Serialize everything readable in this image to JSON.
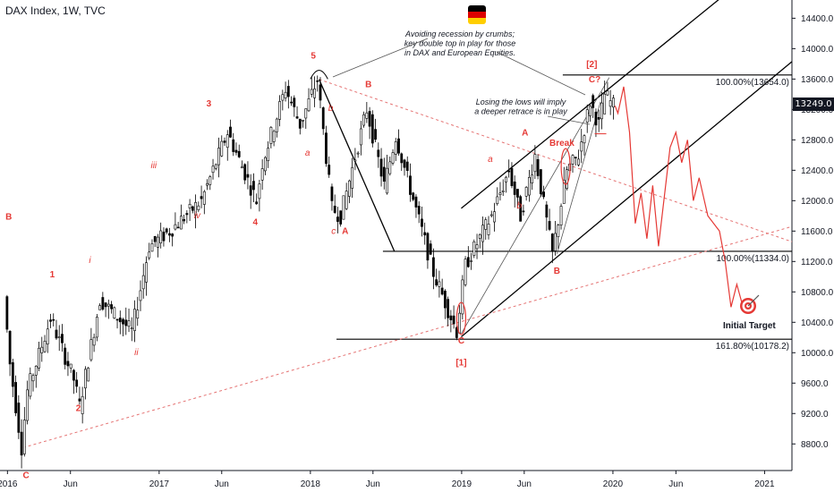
{
  "header": {
    "title": "DAX Index, 1W, TVC"
  },
  "price_badge": "13249.0",
  "colors": {
    "wave": "#e53935",
    "line": "#000000",
    "bull": "#26a69a",
    "bear": "#000000",
    "trend": "#e57373"
  },
  "annotations": {
    "callout": [
      "Avoiding recession by crumbs;",
      "key double top in play for those",
      "in DAX and European Equities."
    ],
    "retrace_note": [
      "Losing the lows will imply",
      "a deeper retrace is in play"
    ],
    "break_label": "Break",
    "target_label": "Initial Target"
  },
  "levels": [
    {
      "price": 13654.0,
      "label": "100.00%(13654.0)"
    },
    {
      "price": 11334.0,
      "label": "100.00%(11334.0)"
    },
    {
      "price": 10178.2,
      "label": "161.80%(10178.2)"
    }
  ],
  "wave_labels": [
    {
      "text": "B",
      "date": "2016-01-04",
      "price": 11750,
      "italic": false
    },
    {
      "text": "C",
      "date": "2016-02-15",
      "price": 8350,
      "italic": false
    },
    {
      "text": "1",
      "date": "2016-04-18",
      "price": 10990,
      "italic": false
    },
    {
      "text": "2",
      "date": "2016-06-20",
      "price": 9230,
      "italic": false
    },
    {
      "text": "i",
      "date": "2016-07-18",
      "price": 11180,
      "italic": true
    },
    {
      "text": "ii",
      "date": "2016-11-07",
      "price": 9970,
      "italic": true
    },
    {
      "text": "iii",
      "date": "2016-12-19",
      "price": 12430,
      "italic": true
    },
    {
      "text": "iv",
      "date": "2017-04-03",
      "price": 11770,
      "italic": true
    },
    {
      "text": "3",
      "date": "2017-05-01",
      "price": 13240,
      "italic": false
    },
    {
      "text": "4",
      "date": "2017-08-21",
      "price": 11680,
      "italic": false
    },
    {
      "text": "5",
      "date": "2018-01-08",
      "price": 13870,
      "italic": false
    },
    {
      "text": "a",
      "date": "2017-12-25",
      "price": 12590,
      "italic": true
    },
    {
      "text": "b",
      "date": "2018-02-19",
      "price": 13180,
      "italic": true
    },
    {
      "text": "B",
      "date": "2018-05-21",
      "price": 13490,
      "italic": false
    },
    {
      "text": "c",
      "date": "2018-02-26",
      "price": 11560,
      "italic": true
    },
    {
      "text": "A",
      "date": "2018-03-26",
      "price": 11560,
      "italic": false
    },
    {
      "text": "C",
      "date": "2018-12-31",
      "price": 10120,
      "italic": false
    },
    {
      "text": "[1]",
      "date": "2018-12-31",
      "price": 9830,
      "italic": false
    },
    {
      "text": "a",
      "date": "2019-03-11",
      "price": 12510,
      "italic": true
    },
    {
      "text": "b",
      "date": "2019-05-20",
      "price": 11900,
      "italic": true
    },
    {
      "text": "A",
      "date": "2019-06-03",
      "price": 12860,
      "italic": false
    },
    {
      "text": "B",
      "date": "2019-08-19",
      "price": 11040,
      "italic": false
    },
    {
      "text": "C?",
      "date": "2019-11-18",
      "price": 13560,
      "italic": false
    },
    {
      "text": "[2]",
      "date": "2019-11-11",
      "price": 13760,
      "italic": false
    }
  ],
  "chart_data": {
    "type": "candlestick",
    "title": "DAX Index, 1W, TVC",
    "x_ticks": [
      "2016",
      "Jun",
      "2017",
      "Jun",
      "2018",
      "Jun",
      "2019",
      "Jun",
      "2020",
      "Jun",
      "2021"
    ],
    "x_tick_dates": [
      "2016-01-01",
      "2016-06-01",
      "2017-01-01",
      "2017-06-01",
      "2018-01-01",
      "2018-06-01",
      "2019-01-01",
      "2019-06-01",
      "2020-01-01",
      "2020-06-01",
      "2021-01-01"
    ],
    "y_ticks": [
      14400,
      14000,
      13600,
      13200,
      12800,
      12400,
      12000,
      11600,
      11200,
      10800,
      10400,
      10000,
      9600,
      9200,
      8800
    ],
    "ylim": [
      8450,
      14640
    ],
    "xlim": [
      "2015-12-14",
      "2021-03-08"
    ],
    "last_price": 13249.0,
    "price_path": [
      [
        "2015-12-28",
        10740
      ],
      [
        "2016-01-11",
        9850
      ],
      [
        "2016-02-08",
        8752
      ],
      [
        "2016-02-22",
        9500
      ],
      [
        "2016-04-18",
        10450
      ],
      [
        "2016-06-13",
        9650
      ],
      [
        "2016-06-27",
        9300
      ],
      [
        "2016-08-15",
        10700
      ],
      [
        "2016-10-31",
        10280
      ],
      [
        "2016-12-12",
        11400
      ],
      [
        "2017-01-30",
        11600
      ],
      [
        "2017-04-17",
        12000
      ],
      [
        "2017-06-19",
        12900
      ],
      [
        "2017-08-28",
        12000
      ],
      [
        "2017-09-11",
        12500
      ],
      [
        "2017-11-06",
        13480
      ],
      [
        "2017-12-11",
        13000
      ],
      [
        "2018-01-22",
        13596
      ],
      [
        "2018-02-26",
        11900
      ],
      [
        "2018-03-19",
        11800
      ],
      [
        "2018-05-21",
        13200
      ],
      [
        "2018-07-02",
        12200
      ],
      [
        "2018-07-30",
        12850
      ],
      [
        "2018-10-29",
        11050
      ],
      [
        "2018-12-24",
        10280
      ],
      [
        "2019-01-14",
        11150
      ],
      [
        "2019-03-18",
        11800
      ],
      [
        "2019-04-29",
        12400
      ],
      [
        "2019-05-27",
        11800
      ],
      [
        "2019-07-01",
        12600
      ],
      [
        "2019-08-12",
        11300
      ],
      [
        "2019-09-16",
        12400
      ],
      [
        "2019-10-14",
        12600
      ],
      [
        "2019-11-11",
        13300
      ],
      [
        "2019-12-02",
        13000
      ],
      [
        "2019-12-16",
        13400
      ],
      [
        "2020-01-06",
        13249
      ]
    ],
    "projection": {
      "name": "projected path",
      "points": [
        [
          "2020-01-06",
          13249
        ],
        [
          "2020-01-13",
          13150
        ],
        [
          "2020-01-27",
          13500
        ],
        [
          "2020-02-10",
          12900
        ],
        [
          "2020-02-24",
          11700
        ],
        [
          "2020-03-09",
          12100
        ],
        [
          "2020-03-23",
          11500
        ],
        [
          "2020-04-06",
          12200
        ],
        [
          "2020-04-20",
          11400
        ],
        [
          "2020-05-18",
          12700
        ],
        [
          "2020-06-01",
          12900
        ],
        [
          "2020-06-15",
          12500
        ],
        [
          "2020-06-29",
          12800
        ],
        [
          "2020-07-13",
          12000
        ],
        [
          "2020-07-27",
          12300
        ],
        [
          "2020-08-17",
          11800
        ],
        [
          "2020-09-14",
          11600
        ],
        [
          "2020-09-28",
          11200
        ],
        [
          "2020-10-12",
          10600
        ],
        [
          "2020-10-26",
          10900
        ],
        [
          "2020-11-09",
          10620
        ]
      ]
    },
    "trendlines": [
      {
        "name": "upper channel",
        "from": [
          "2018-12-31",
          11900
        ],
        "to": [
          "2020-11-09",
          14900
        ]
      },
      {
        "name": "lower channel",
        "from": [
          "2018-12-31",
          10210
        ],
        "to": [
          "2021-03-08",
          13830
        ]
      },
      {
        "name": "long-term support (dashed)",
        "from": [
          "2016-02-08",
          8752
        ],
        "to": [
          "2021-03-08",
          11660
        ]
      },
      {
        "name": "descending resistance (dashed)",
        "from": [
          "2018-01-22",
          13596
        ],
        "to": [
          "2021-03-08",
          11460
        ]
      },
      {
        "name": "C-leg line",
        "from": [
          "2018-01-22",
          13596
        ],
        "to": [
          "2018-07-23",
          11330
        ]
      },
      {
        "name": "fan line 1",
        "from": [
          "2018-12-31",
          10250
        ],
        "to": [
          "2019-12-23",
          13620
        ]
      },
      {
        "name": "fan line 2",
        "from": [
          "2019-08-19",
          11300
        ],
        "to": [
          "2019-12-02",
          13300
        ]
      }
    ]
  }
}
